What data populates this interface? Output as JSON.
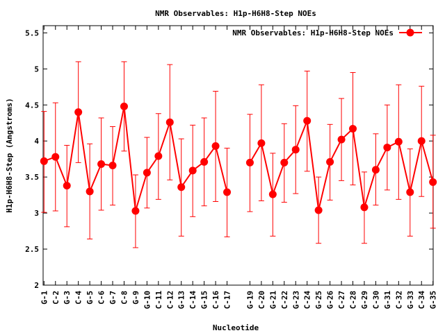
{
  "chart_data": {
    "type": "line",
    "title": "NMR Observables: H1p-H6H8-Step NOEs",
    "xlabel": "Nucleotide",
    "ylabel": "H1p-H6H8-Step (Angstroms)",
    "ylim": [
      2,
      5.6
    ],
    "yticks": [
      2,
      2.5,
      3,
      3.5,
      4,
      4.5,
      5,
      5.5
    ],
    "legend_position": "top-right",
    "color": "#ff0000",
    "series": [
      {
        "name": "NMR Observables: H1p-H6H8-Step NOEs",
        "points": [
          {
            "x": 1,
            "label": "G-1",
            "y": 3.72,
            "err_low": 3.01,
            "err_high": 4.41
          },
          {
            "x": 2,
            "label": "C-2",
            "y": 3.78,
            "err_low": 3.03,
            "err_high": 4.53
          },
          {
            "x": 3,
            "label": "G-3",
            "y": 3.38,
            "err_low": 2.81,
            "err_high": 3.94
          },
          {
            "x": 4,
            "label": "C-4",
            "y": 4.4,
            "err_low": 3.7,
            "err_high": 5.1
          },
          {
            "x": 5,
            "label": "G-5",
            "y": 3.3,
            "err_low": 2.64,
            "err_high": 3.96
          },
          {
            "x": 6,
            "label": "C-6",
            "y": 3.68,
            "err_low": 3.04,
            "err_high": 4.32
          },
          {
            "x": 7,
            "label": "G-7",
            "y": 3.66,
            "err_low": 3.11,
            "err_high": 4.2
          },
          {
            "x": 8,
            "label": "C-8",
            "y": 4.48,
            "err_low": 3.86,
            "err_high": 5.1
          },
          {
            "x": 9,
            "label": "G-9",
            "y": 3.03,
            "err_low": 2.52,
            "err_high": 3.53
          },
          {
            "x": 10,
            "label": "G-10",
            "y": 3.56,
            "err_low": 3.07,
            "err_high": 4.05
          },
          {
            "x": 11,
            "label": "C-11",
            "y": 3.79,
            "err_low": 3.19,
            "err_high": 4.38
          },
          {
            "x": 12,
            "label": "C-12",
            "y": 4.26,
            "err_low": 3.46,
            "err_high": 5.06
          },
          {
            "x": 13,
            "label": "G-13",
            "y": 3.36,
            "err_low": 2.68,
            "err_high": 4.03
          },
          {
            "x": 14,
            "label": "C-14",
            "y": 3.59,
            "err_low": 2.95,
            "err_high": 4.22
          },
          {
            "x": 15,
            "label": "G-15",
            "y": 3.71,
            "err_low": 3.1,
            "err_high": 4.32
          },
          {
            "x": 16,
            "label": "C-16",
            "y": 3.93,
            "err_low": 3.16,
            "err_high": 4.69
          },
          {
            "x": 17,
            "label": "C-17",
            "y": 3.29,
            "err_low": 2.67,
            "err_high": 3.9
          },
          {
            "x": 19,
            "label": "G-19",
            "y": 3.7,
            "err_low": 3.02,
            "err_high": 4.37
          },
          {
            "x": 20,
            "label": "C-20",
            "y": 3.97,
            "err_low": 3.17,
            "err_high": 4.78
          },
          {
            "x": 21,
            "label": "G-21",
            "y": 3.26,
            "err_low": 2.68,
            "err_high": 3.83
          },
          {
            "x": 22,
            "label": "C-22",
            "y": 3.7,
            "err_low": 3.15,
            "err_high": 4.24
          },
          {
            "x": 23,
            "label": "G-23",
            "y": 3.88,
            "err_low": 3.27,
            "err_high": 4.49
          },
          {
            "x": 24,
            "label": "C-24",
            "y": 4.28,
            "err_low": 3.58,
            "err_high": 4.97
          },
          {
            "x": 25,
            "label": "G-25",
            "y": 3.04,
            "err_low": 2.58,
            "err_high": 3.5
          },
          {
            "x": 26,
            "label": "G-26",
            "y": 3.71,
            "err_low": 3.18,
            "err_high": 4.23
          },
          {
            "x": 27,
            "label": "C-27",
            "y": 4.02,
            "err_low": 3.45,
            "err_high": 4.59
          },
          {
            "x": 28,
            "label": "C-28",
            "y": 4.17,
            "err_low": 3.39,
            "err_high": 4.95
          },
          {
            "x": 29,
            "label": "G-29",
            "y": 3.08,
            "err_low": 2.58,
            "err_high": 3.57
          },
          {
            "x": 30,
            "label": "C-30",
            "y": 3.6,
            "err_low": 3.11,
            "err_high": 4.1
          },
          {
            "x": 31,
            "label": "G-31",
            "y": 3.91,
            "err_low": 3.32,
            "err_high": 4.5
          },
          {
            "x": 32,
            "label": "C-32",
            "y": 3.99,
            "err_low": 3.19,
            "err_high": 4.78
          },
          {
            "x": 33,
            "label": "G-33",
            "y": 3.29,
            "err_low": 2.68,
            "err_high": 3.89
          },
          {
            "x": 34,
            "label": "C-34",
            "y": 4.0,
            "err_low": 3.23,
            "err_high": 4.76
          },
          {
            "x": 35,
            "label": "G-35",
            "y": 3.43,
            "err_low": 2.79,
            "err_high": 4.08
          }
        ]
      }
    ]
  }
}
